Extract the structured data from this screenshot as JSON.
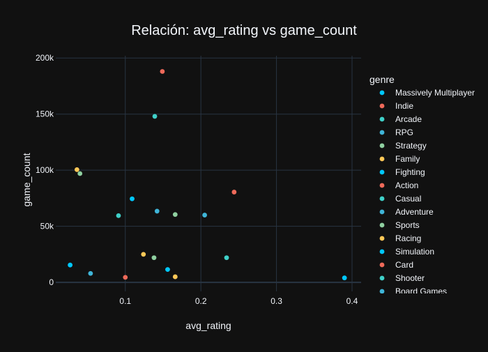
{
  "chart_data": {
    "type": "scatter",
    "title": "Relación: avg_rating vs game_count",
    "xlabel": "avg_rating",
    "ylabel": "game_count",
    "xlim": [
      0.008,
      0.412
    ],
    "ylim": [
      -8000,
      202000
    ],
    "x_ticks": [
      0.1,
      0.2,
      0.3,
      0.4
    ],
    "x_tick_labels": [
      "0.1",
      "0.2",
      "0.3",
      "0.4"
    ],
    "y_ticks": [
      0,
      50000,
      100000,
      150000,
      200000
    ],
    "y_tick_labels": [
      "0",
      "50k",
      "100k",
      "150k",
      "200k"
    ],
    "grid": true,
    "legend_title": "genre",
    "legend_position": "right",
    "series": [
      {
        "name": "Massively Multiplayer",
        "color": "#00c8ff",
        "points": [
          {
            "x": 0.39,
            "y": 4000
          }
        ]
      },
      {
        "name": "Indie",
        "color": "#ef6a5a",
        "points": [
          {
            "x": 0.149,
            "y": 188000
          }
        ]
      },
      {
        "name": "Arcade",
        "color": "#3fd0c8",
        "points": [
          {
            "x": 0.234,
            "y": 22000
          }
        ]
      },
      {
        "name": "RPG",
        "color": "#3fb5d8",
        "points": [
          {
            "x": 0.205,
            "y": 60000
          }
        ]
      },
      {
        "name": "Strategy",
        "color": "#8fd0a0",
        "points": [
          {
            "x": 0.166,
            "y": 60500
          }
        ]
      },
      {
        "name": "Family",
        "color": "#ffc857",
        "points": [
          {
            "x": 0.166,
            "y": 5000
          }
        ]
      },
      {
        "name": "Fighting",
        "color": "#00c8ff",
        "points": [
          {
            "x": 0.156,
            "y": 11500
          }
        ]
      },
      {
        "name": "Action",
        "color": "#ef6a5a",
        "points": [
          {
            "x": 0.244,
            "y": 80500
          }
        ]
      },
      {
        "name": "Casual",
        "color": "#3fd0c8",
        "points": [
          {
            "x": 0.091,
            "y": 59500
          }
        ]
      },
      {
        "name": "Adventure",
        "color": "#3fb5d8",
        "points": [
          {
            "x": 0.142,
            "y": 63500
          }
        ]
      },
      {
        "name": "Sports",
        "color": "#8fd0a0",
        "points": [
          {
            "x": 0.138,
            "y": 22000
          }
        ]
      },
      {
        "name": "Racing",
        "color": "#ffc857",
        "points": [
          {
            "x": 0.124,
            "y": 25000
          }
        ]
      },
      {
        "name": "Simulation",
        "color": "#00c8ff",
        "points": [
          {
            "x": 0.109,
            "y": 74500
          }
        ]
      },
      {
        "name": "Card",
        "color": "#ef6a5a",
        "points": [
          {
            "x": 0.1,
            "y": 4500
          }
        ]
      },
      {
        "name": "Shooter",
        "color": "#3fd0c8",
        "points": [
          {
            "x": 0.139,
            "y": 148000
          }
        ]
      },
      {
        "name": "Board Games",
        "color": "#3fb5d8",
        "points": [
          {
            "x": 0.054,
            "y": 8000
          }
        ]
      },
      {
        "name": "",
        "color": "#8fd0a0",
        "points": [
          {
            "x": 0.04,
            "y": 97000
          }
        ]
      },
      {
        "name": "",
        "color": "#ffc857",
        "points": [
          {
            "x": 0.036,
            "y": 100500
          }
        ]
      },
      {
        "name": "",
        "color": "#00c8ff",
        "points": [
          {
            "x": 0.027,
            "y": 15500
          }
        ]
      }
    ]
  },
  "colors": {
    "background": "#111111",
    "grid": "#283442",
    "text": "#f2f5fa"
  }
}
